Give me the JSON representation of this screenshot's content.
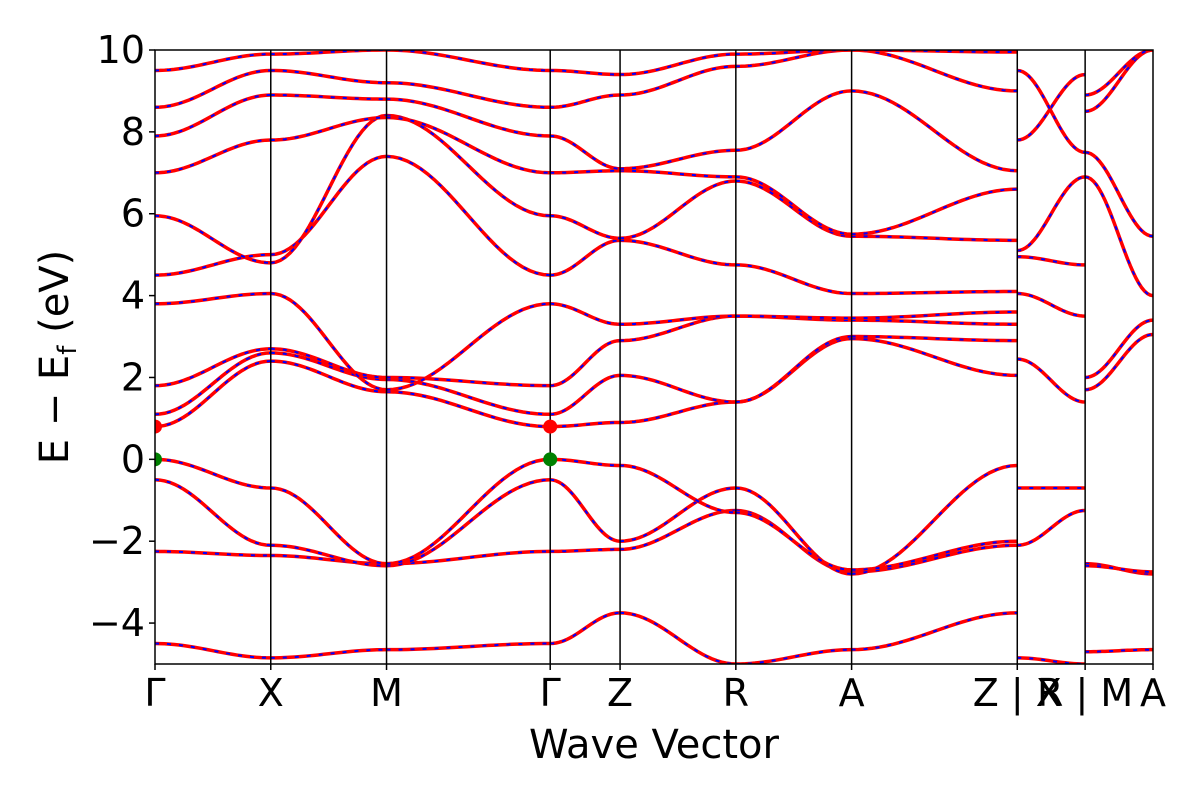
{
  "chart_data": {
    "type": "line",
    "title": "",
    "xlabel": "Wave Vector",
    "ylabel": "E − E_f (eV)",
    "ylabel_parts": {
      "main": "E − E",
      "sub": "f",
      "unit": " (eV)"
    },
    "ylim": [
      -5,
      10
    ],
    "yticks": [
      -4,
      -2,
      0,
      2,
      4,
      6,
      8,
      10
    ],
    "ytick_labels": [
      "−4",
      "−2",
      "0",
      "2",
      "4",
      "6",
      "8",
      "10"
    ],
    "kpath_ticks": [
      {
        "k": 0.0,
        "label": "Γ"
      },
      {
        "k": 0.116,
        "label": "X"
      },
      {
        "k": 0.232,
        "label": "M"
      },
      {
        "k": 0.396,
        "label": "Γ"
      },
      {
        "k": 0.466,
        "label": "Z"
      },
      {
        "k": 0.582,
        "label": "R"
      },
      {
        "k": 0.698,
        "label": "A"
      },
      {
        "k": 0.864,
        "label": "Z | X"
      },
      {
        "k": 0.932,
        "label": "R | M"
      },
      {
        "k": 1.0,
        "label": "A"
      }
    ],
    "xlim": [
      0,
      1
    ],
    "styles": {
      "band_color_solid": "#ff0000",
      "band_color_dashed": "#0000ff",
      "vbm_color": "#008000",
      "cbm_color": "#ff0000"
    },
    "extrema": [
      {
        "type": "VBM",
        "k": 0.0,
        "E": 0.0
      },
      {
        "type": "VBM",
        "k": 0.396,
        "E": 0.0
      },
      {
        "type": "CBM",
        "k": 0.0,
        "E": 0.8
      },
      {
        "type": "CBM",
        "k": 0.396,
        "E": 0.8
      }
    ],
    "segments": [
      {
        "from": 0.0,
        "to": 0.116,
        "bands": [
          [
            -4.5,
            -4.85
          ],
          [
            -2.25,
            -2.35
          ],
          [
            -0.5,
            -2.1
          ],
          [
            0.0,
            -0.7
          ],
          [
            0.8,
            2.4
          ],
          [
            1.1,
            2.6
          ],
          [
            1.8,
            2.7
          ],
          [
            3.8,
            4.05
          ],
          [
            4.5,
            5.0
          ],
          [
            5.95,
            4.8
          ],
          [
            7.0,
            7.8
          ],
          [
            7.9,
            8.9
          ],
          [
            8.6,
            9.5
          ],
          [
            9.5,
            9.9
          ]
        ]
      },
      {
        "from": 0.116,
        "to": 0.232,
        "bands": [
          [
            -4.85,
            -4.65
          ],
          [
            -2.35,
            -2.55
          ],
          [
            -2.1,
            -2.6
          ],
          [
            -0.7,
            -2.55
          ],
          [
            2.4,
            1.65
          ],
          [
            2.6,
            1.95
          ],
          [
            2.7,
            2.0
          ],
          [
            4.05,
            1.7
          ],
          [
            5.0,
            7.4
          ],
          [
            4.8,
            8.4
          ],
          [
            7.8,
            8.35
          ],
          [
            8.9,
            8.8
          ],
          [
            9.5,
            9.2
          ],
          [
            9.9,
            10.0
          ]
        ]
      },
      {
        "from": 0.232,
        "to": 0.396,
        "bands": [
          [
            -4.65,
            -4.5
          ],
          [
            -2.55,
            -2.25
          ],
          [
            -2.6,
            -0.5
          ],
          [
            -2.55,
            0.0
          ],
          [
            1.65,
            0.8
          ],
          [
            1.95,
            1.1
          ],
          [
            2.0,
            1.8
          ],
          [
            1.7,
            3.8
          ],
          [
            7.4,
            4.5
          ],
          [
            8.4,
            5.95
          ],
          [
            8.35,
            7.0
          ],
          [
            8.8,
            7.9
          ],
          [
            9.2,
            8.6
          ],
          [
            10.0,
            9.5
          ]
        ]
      },
      {
        "from": 0.396,
        "to": 0.466,
        "bands": [
          [
            -4.5,
            -3.75
          ],
          [
            -2.25,
            -2.2
          ],
          [
            -0.5,
            -2.0
          ],
          [
            0.0,
            -0.15
          ],
          [
            0.8,
            0.9
          ],
          [
            1.1,
            2.05
          ],
          [
            1.8,
            2.9
          ],
          [
            3.8,
            3.3
          ],
          [
            4.5,
            5.35
          ],
          [
            5.95,
            5.4
          ],
          [
            7.0,
            7.05
          ],
          [
            7.9,
            7.1
          ],
          [
            8.6,
            8.9
          ],
          [
            9.5,
            9.4
          ]
        ]
      },
      {
        "from": 0.466,
        "to": 0.582,
        "bands": [
          [
            -3.75,
            -5.0
          ],
          [
            -2.2,
            -1.25
          ],
          [
            -2.0,
            -0.7
          ],
          [
            -0.15,
            -1.3
          ],
          [
            0.9,
            1.4
          ],
          [
            2.05,
            1.4
          ],
          [
            2.9,
            3.5
          ],
          [
            3.3,
            3.5
          ],
          [
            5.35,
            4.75
          ],
          [
            5.4,
            6.8
          ],
          [
            7.05,
            6.9
          ],
          [
            7.1,
            7.55
          ],
          [
            8.9,
            9.6
          ],
          [
            9.4,
            9.9
          ]
        ]
      },
      {
        "from": 0.582,
        "to": 0.698,
        "bands": [
          [
            -5.0,
            -4.65
          ],
          [
            -1.25,
            -2.75
          ],
          [
            -0.7,
            -2.8
          ],
          [
            -1.3,
            -2.7
          ],
          [
            1.4,
            2.95
          ],
          [
            1.4,
            3.0
          ],
          [
            3.5,
            3.4
          ],
          [
            3.5,
            3.45
          ],
          [
            4.75,
            4.05
          ],
          [
            6.8,
            5.45
          ],
          [
            6.9,
            5.5
          ],
          [
            7.55,
            9.0
          ],
          [
            9.6,
            10.0
          ],
          [
            9.9,
            10.0
          ]
        ]
      },
      {
        "from": 0.698,
        "to": 0.864,
        "bands": [
          [
            -4.65,
            -3.75
          ],
          [
            -2.75,
            -2.1
          ],
          [
            -2.8,
            -0.15
          ],
          [
            -2.7,
            -2.0
          ],
          [
            2.95,
            2.05
          ],
          [
            3.0,
            2.9
          ],
          [
            3.4,
            3.3
          ],
          [
            3.45,
            3.6
          ],
          [
            4.05,
            4.1
          ],
          [
            5.45,
            5.35
          ],
          [
            5.5,
            6.6
          ],
          [
            9.0,
            7.05
          ],
          [
            10.0,
            9.0
          ],
          [
            10.0,
            9.95
          ]
        ]
      },
      {
        "from": 0.864,
        "to": 0.932,
        "bands": [
          [
            -4.85,
            -5.0
          ],
          [
            -0.7,
            -0.7
          ],
          [
            -2.1,
            -1.25
          ],
          [
            2.45,
            1.4
          ],
          [
            4.05,
            3.5
          ],
          [
            4.95,
            4.75
          ],
          [
            5.1,
            6.9
          ],
          [
            7.8,
            9.4
          ],
          [
            9.5,
            7.5
          ]
        ]
      },
      {
        "from": 0.932,
        "to": 1.0,
        "bands": [
          [
            -4.7,
            -4.65
          ],
          [
            -2.55,
            -2.8
          ],
          [
            -2.6,
            -2.75
          ],
          [
            1.7,
            3.05
          ],
          [
            2.0,
            3.4
          ],
          [
            6.9,
            4.0
          ],
          [
            8.5,
            10.0
          ],
          [
            7.5,
            5.45
          ],
          [
            8.9,
            10.0
          ]
        ]
      }
    ]
  }
}
